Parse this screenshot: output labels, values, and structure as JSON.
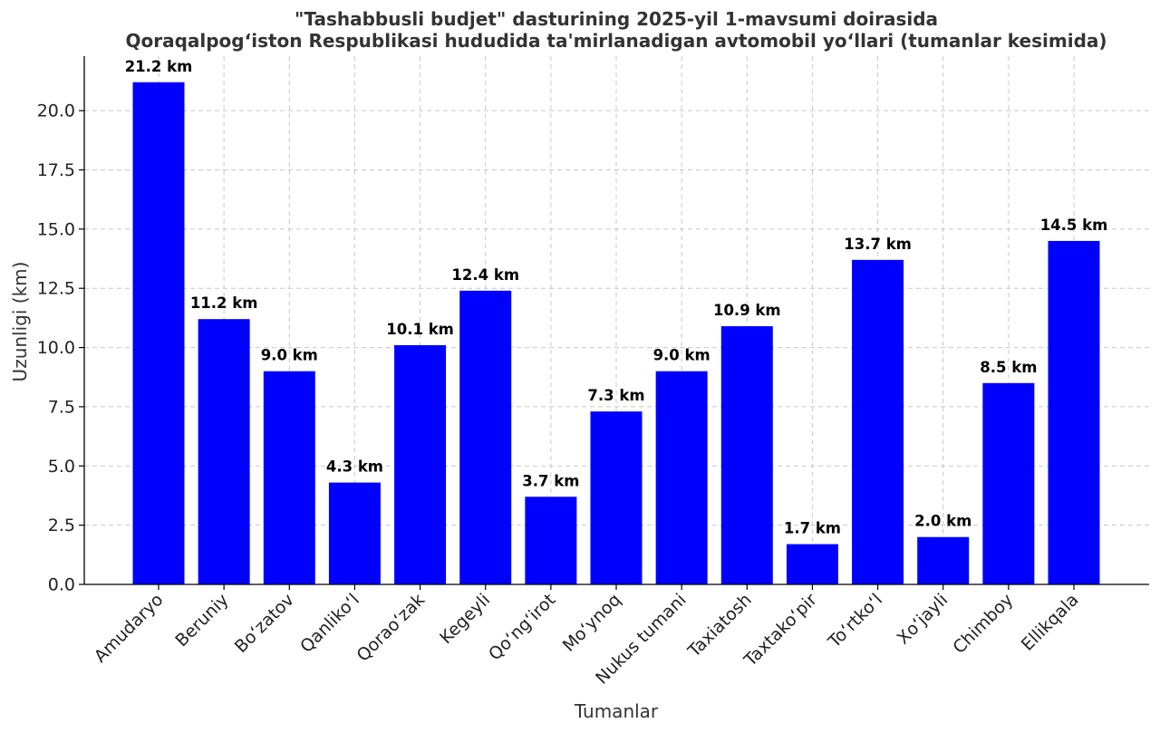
{
  "chart_data": {
    "type": "bar",
    "title_line1": "\"Tashabbusli budjet\" dasturining 2025-yil 1-mavsumi doirasida",
    "title_line2": "Qoraqalpog‘iston Respublikasi hududida ta'mirlanadigan avtomobil yo‘llari (tumanlar kesimida)",
    "xlabel": "Tumanlar",
    "ylabel": "Uzunligi (km)",
    "ylim": [
      0,
      22.3
    ],
    "yticks": [
      "0.0",
      "2.5",
      "5.0",
      "7.5",
      "10.0",
      "12.5",
      "15.0",
      "17.5",
      "20.0"
    ],
    "grid": true,
    "bar_color": "#0000ff",
    "categories": [
      "Amudaryo",
      "Beruniy",
      "Bo‘zatov",
      "Qanliko‘l",
      "Qorao‘zak",
      "Kegeyli",
      "Qo‘ng‘irot",
      "Mo‘ynoq",
      "Nukus tumani",
      "Taxiatosh",
      "Taxtako‘pir",
      "To‘rtko‘l",
      "Xo‘jayli",
      "Chimboy",
      "Ellikqala"
    ],
    "values": [
      21.2,
      11.2,
      9.0,
      4.3,
      10.1,
      12.4,
      3.7,
      7.3,
      9.0,
      10.9,
      1.7,
      13.7,
      2.0,
      8.5,
      14.5
    ],
    "data_labels": [
      "21.2 km",
      "11.2 km",
      "9.0 km",
      "4.3 km",
      "10.1 km",
      "12.4 km",
      "3.7 km",
      "7.3 km",
      "9.0 km",
      "10.9 km",
      "1.7 km",
      "13.7 km",
      "2.0 km",
      "8.5 km",
      "14.5 km"
    ]
  }
}
